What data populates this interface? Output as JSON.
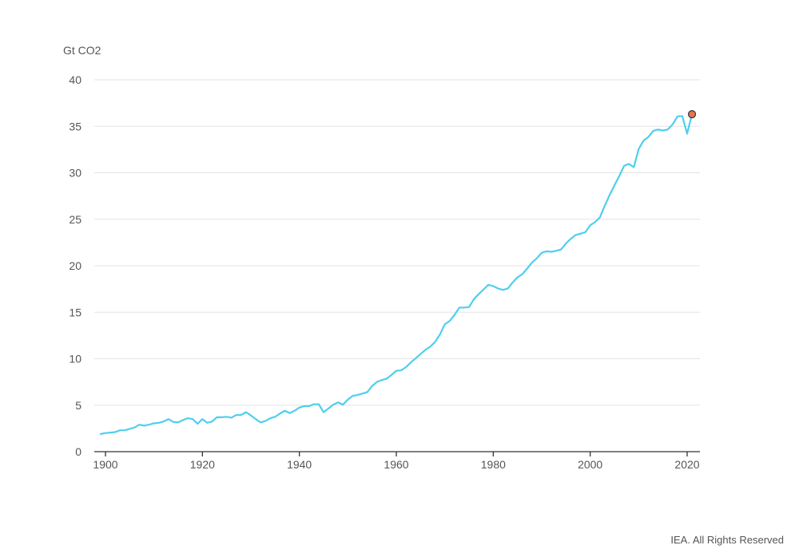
{
  "credit": "IEA. All Rights Reserved",
  "colors": {
    "line": "#4fcfee",
    "marker_fill": "#e8734f",
    "marker_stroke": "#333333",
    "gridline": "#e3e3e3",
    "axis": "#333333",
    "text": "#555555"
  },
  "chart_data": {
    "type": "line",
    "ylabel": "Gt CO2",
    "xlabel": "",
    "xlim": [
      1900,
      2021
    ],
    "ylim": [
      0,
      40
    ],
    "yticks": [
      0,
      5,
      10,
      15,
      20,
      25,
      30,
      35,
      40
    ],
    "xticks": [
      1900,
      1920,
      1940,
      1960,
      1980,
      2000,
      2020
    ],
    "grid": true,
    "highlight": {
      "x": 2021,
      "y": 36.3
    },
    "series": [
      {
        "x": [
          1899,
          1900,
          1901,
          1902,
          1903,
          1904,
          1905,
          1906,
          1907,
          1908,
          1909,
          1910,
          1911,
          1912,
          1913,
          1914,
          1915,
          1916,
          1917,
          1918,
          1919,
          1920,
          1921,
          1922,
          1923,
          1924,
          1925,
          1926,
          1927,
          1928,
          1929,
          1930,
          1931,
          1932,
          1933,
          1934,
          1935,
          1936,
          1937,
          1938,
          1939,
          1940,
          1941,
          1942,
          1943,
          1944,
          1945,
          1946,
          1947,
          1948,
          1949,
          1950,
          1951,
          1952,
          1953,
          1954,
          1955,
          1956,
          1957,
          1958,
          1959,
          1960,
          1961,
          1962,
          1963,
          1964,
          1965,
          1966,
          1967,
          1968,
          1969,
          1970,
          1971,
          1972,
          1973,
          1974,
          1975,
          1976,
          1977,
          1978,
          1979,
          1980,
          1981,
          1982,
          1983,
          1984,
          1985,
          1986,
          1987,
          1988,
          1989,
          1990,
          1991,
          1992,
          1993,
          1994,
          1995,
          1996,
          1997,
          1998,
          1999,
          2000,
          2001,
          2002,
          2003,
          2004,
          2005,
          2006,
          2007,
          2008,
          2009,
          2010,
          2011,
          2012,
          2013,
          2014,
          2015,
          2016,
          2017,
          2018,
          2019,
          2020,
          2021
        ],
        "y": [
          1.9,
          2.0,
          2.05,
          2.1,
          2.3,
          2.3,
          2.45,
          2.6,
          2.9,
          2.8,
          2.9,
          3.05,
          3.1,
          3.25,
          3.5,
          3.2,
          3.15,
          3.4,
          3.6,
          3.5,
          3.0,
          3.5,
          3.1,
          3.25,
          3.7,
          3.7,
          3.75,
          3.65,
          3.95,
          3.95,
          4.25,
          3.9,
          3.5,
          3.15,
          3.3,
          3.6,
          3.75,
          4.1,
          4.4,
          4.15,
          4.4,
          4.75,
          4.9,
          4.9,
          5.1,
          5.1,
          4.25,
          4.65,
          5.05,
          5.3,
          5.05,
          5.6,
          6.0,
          6.1,
          6.25,
          6.4,
          7.05,
          7.5,
          7.7,
          7.85,
          8.25,
          8.7,
          8.75,
          9.1,
          9.6,
          10.05,
          10.5,
          10.95,
          11.3,
          11.8,
          12.6,
          13.7,
          14.05,
          14.7,
          15.5,
          15.5,
          15.55,
          16.4,
          16.95,
          17.45,
          17.95,
          17.8,
          17.55,
          17.4,
          17.55,
          18.2,
          18.75,
          19.1,
          19.7,
          20.35,
          20.8,
          21.4,
          21.55,
          21.5,
          21.6,
          21.75,
          22.4,
          22.9,
          23.3,
          23.45,
          23.6,
          24.35,
          24.7,
          25.2,
          26.45,
          27.6,
          28.65,
          29.65,
          30.75,
          30.95,
          30.6,
          32.55,
          33.45,
          33.85,
          34.5,
          34.65,
          34.55,
          34.65,
          35.2,
          36.05,
          36.1,
          34.2,
          36.3
        ]
      }
    ]
  }
}
